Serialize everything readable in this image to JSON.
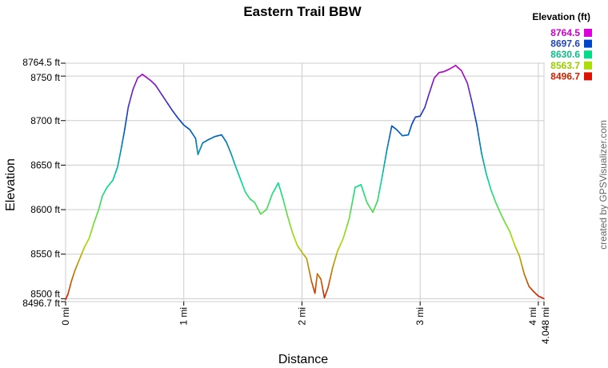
{
  "chart_data": {
    "type": "line",
    "title": "Eastern Trail BBW",
    "xlabel": "Distance",
    "ylabel": "Elevation",
    "xlim": [
      0,
      4.048
    ],
    "ylim": [
      8496.7,
      8764.5
    ],
    "x_ticks": [
      {
        "value": 0,
        "label": "0 mi"
      },
      {
        "value": 1,
        "label": "1 mi"
      },
      {
        "value": 2,
        "label": "2 mi"
      },
      {
        "value": 3,
        "label": "3 mi"
      },
      {
        "value": 4,
        "label": "4 mi"
      },
      {
        "value": 4.048,
        "label": "4.048 mi"
      }
    ],
    "y_ticks": [
      {
        "value": 8496.7,
        "label": "8496.7 ft"
      },
      {
        "value": 8500,
        "label": "8500 ft"
      },
      {
        "value": 8550,
        "label": "8550 ft"
      },
      {
        "value": 8600,
        "label": "8600 ft"
      },
      {
        "value": 8650,
        "label": "8650 ft"
      },
      {
        "value": 8700,
        "label": "8700 ft"
      },
      {
        "value": 8750,
        "label": "8750 ft"
      },
      {
        "value": 8764.5,
        "label": "8764.5 ft"
      }
    ],
    "grid": true,
    "legend": {
      "title": "Elevation (ft)",
      "placement": "top-right",
      "entries": [
        {
          "label": "8764.5",
          "color": "#cc00cc",
          "swatch": "#dd00dd"
        },
        {
          "label": "8697.6",
          "color": "#2244bb",
          "swatch": "#0044cc"
        },
        {
          "label": "8630.6",
          "color": "#11bb88",
          "swatch": "#00dd88"
        },
        {
          "label": "8563.7",
          "color": "#99cc00",
          "swatch": "#aadd00"
        },
        {
          "label": "8496.7",
          "color": "#cc2200",
          "swatch": "#dd1100"
        }
      ]
    },
    "credit": "created by GPSVisualizer.com",
    "series": [
      {
        "x": [
          0.0,
          0.02,
          0.05,
          0.08,
          0.12,
          0.16,
          0.2,
          0.24,
          0.28,
          0.31,
          0.35,
          0.4,
          0.44,
          0.47,
          0.5,
          0.53,
          0.57,
          0.61,
          0.65,
          0.68,
          0.72,
          0.76,
          0.8,
          0.85,
          0.9,
          0.95,
          1.0,
          1.05,
          1.1,
          1.12,
          1.16,
          1.2,
          1.26,
          1.32,
          1.36,
          1.4,
          1.44,
          1.48,
          1.52,
          1.56,
          1.6,
          1.65,
          1.7,
          1.75,
          1.8,
          1.84,
          1.88,
          1.92,
          1.96,
          2.0,
          2.04,
          2.08,
          2.11,
          2.13,
          2.16,
          2.19,
          2.22,
          2.26,
          2.3,
          2.35,
          2.4,
          2.45,
          2.5,
          2.55,
          2.6,
          2.64,
          2.68,
          2.72,
          2.76,
          2.8,
          2.85,
          2.9,
          2.93,
          2.96,
          3.0,
          3.04,
          3.08,
          3.12,
          3.16,
          3.2,
          3.25,
          3.3,
          3.35,
          3.4,
          3.44,
          3.48,
          3.52,
          3.56,
          3.6,
          3.64,
          3.68,
          3.72,
          3.76,
          3.8,
          3.84,
          3.88,
          3.92,
          3.96,
          4.0,
          4.048
        ],
        "y": [
          8499,
          8505,
          8520,
          8532,
          8545,
          8558,
          8568,
          8585,
          8600,
          8615,
          8625,
          8633,
          8648,
          8668,
          8690,
          8715,
          8735,
          8748,
          8752,
          8749,
          8745,
          8740,
          8732,
          8722,
          8712,
          8703,
          8695,
          8690,
          8680,
          8662,
          8675,
          8678,
          8682,
          8684,
          8676,
          8663,
          8648,
          8634,
          8620,
          8612,
          8608,
          8595,
          8600,
          8618,
          8630,
          8612,
          8592,
          8574,
          8560,
          8552,
          8545,
          8520,
          8506,
          8528,
          8522,
          8501,
          8512,
          8535,
          8553,
          8568,
          8590,
          8625,
          8628,
          8608,
          8597,
          8610,
          8638,
          8668,
          8694,
          8690,
          8683,
          8684,
          8696,
          8704,
          8705,
          8715,
          8732,
          8748,
          8754,
          8755,
          8758,
          8762,
          8756,
          8742,
          8720,
          8695,
          8663,
          8640,
          8622,
          8608,
          8596,
          8585,
          8575,
          8560,
          8548,
          8528,
          8514,
          8508,
          8503,
          8500
        ]
      }
    ]
  }
}
